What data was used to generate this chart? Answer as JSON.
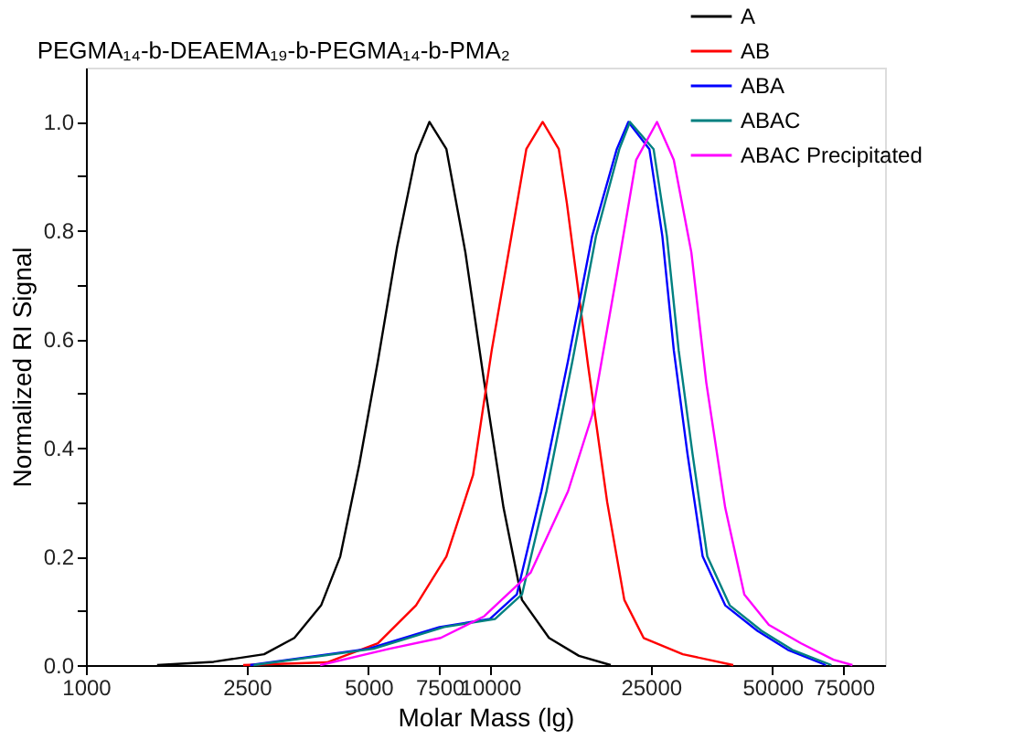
{
  "chart_data": {
    "type": "line",
    "title": "PEGMA₁₄-b-DEAEMA₁₉-b-PEGMA₁₄-b-PMA₂",
    "xlabel": "Molar Mass (lg)",
    "ylabel": "Normalized RI Signal",
    "log": "x",
    "grid": false,
    "legend": "top right",
    "line_style": "solid",
    "marker": "none",
    "xlim": [
      1000,
      95000
    ],
    "xticks": [
      1000,
      2500,
      5000,
      7500,
      10000,
      25000,
      50000,
      75000
    ],
    "ylim": [
      0,
      1.1
    ],
    "yticks": [
      {
        "value": 0,
        "label": "0.0"
      },
      {
        "value": 0.1,
        "label": null
      },
      0.2,
      {
        "value": 0.3,
        "label": null
      },
      0.4,
      {
        "value": 0.5,
        "label": null
      },
      0.6,
      {
        "value": 0.7,
        "label": null
      },
      0.8,
      {
        "value": 0.9,
        "label": null
      },
      {
        "value": 1,
        "label": "1.0"
      }
    ],
    "series": [
      {
        "name": "A",
        "color": "#000000",
        "x": [
          1500,
          2070,
          2760,
          3280,
          3820,
          4260,
          4750,
          5280,
          5890,
          6560,
          7080,
          7800,
          8690,
          9680,
          10800,
          12000,
          14000,
          16600,
          19900
        ],
        "values": [
          0,
          0.006,
          0.02,
          0.05,
          0.11,
          0.2,
          0.37,
          0.56,
          0.77,
          0.94,
          1.0,
          0.95,
          0.76,
          0.52,
          0.29,
          0.12,
          0.05,
          0.017,
          0
        ]
      },
      {
        "name": "AB",
        "color": "#ff0000",
        "x": [
          2450,
          3950,
          5280,
          6560,
          7800,
          9080,
          10100,
          11300,
          12300,
          13500,
          14800,
          15500,
          17500,
          19500,
          21500,
          24000,
          30000,
          40000
        ],
        "values": [
          0,
          0.005,
          0.04,
          0.11,
          0.2,
          0.35,
          0.58,
          0.79,
          0.95,
          1.0,
          0.95,
          0.85,
          0.55,
          0.3,
          0.12,
          0.05,
          0.02,
          0
        ]
      },
      {
        "name": "ABA",
        "color": "#0000ff",
        "x": [
          2550,
          5000,
          7500,
          10000,
          11650,
          13400,
          15600,
          17900,
          20600,
          22000,
          24800,
          26700,
          28500,
          30800,
          33600,
          38200,
          45900,
          54600,
          67800
        ],
        "values": [
          0,
          0.03,
          0.07,
          0.085,
          0.13,
          0.32,
          0.56,
          0.79,
          0.95,
          1.0,
          0.95,
          0.79,
          0.58,
          0.39,
          0.2,
          0.11,
          0.063,
          0.028,
          0
        ]
      },
      {
        "name": "ABAC",
        "color": "#008080",
        "x": [
          2600,
          5150,
          7700,
          10300,
          12000,
          13800,
          16000,
          18300,
          20900,
          22200,
          25400,
          27400,
          29300,
          31700,
          34500,
          39200,
          47000,
          56000,
          70000
        ],
        "values": [
          0,
          0.03,
          0.07,
          0.085,
          0.13,
          0.32,
          0.56,
          0.79,
          0.95,
          1.0,
          0.95,
          0.79,
          0.58,
          0.39,
          0.2,
          0.11,
          0.063,
          0.028,
          0
        ]
      },
      {
        "name": "ABAC Precipitated",
        "color": "#ff00ff",
        "x": [
          3800,
          5640,
          7550,
          9680,
          12600,
          15600,
          17900,
          20600,
          23000,
          25900,
          28500,
          31500,
          34300,
          38200,
          42600,
          49000,
          58900,
          70800,
          78900
        ],
        "values": [
          0,
          0.03,
          0.05,
          0.09,
          0.17,
          0.32,
          0.46,
          0.72,
          0.93,
          1.0,
          0.93,
          0.76,
          0.52,
          0.29,
          0.13,
          0.074,
          0.04,
          0.01,
          0
        ]
      }
    ]
  }
}
